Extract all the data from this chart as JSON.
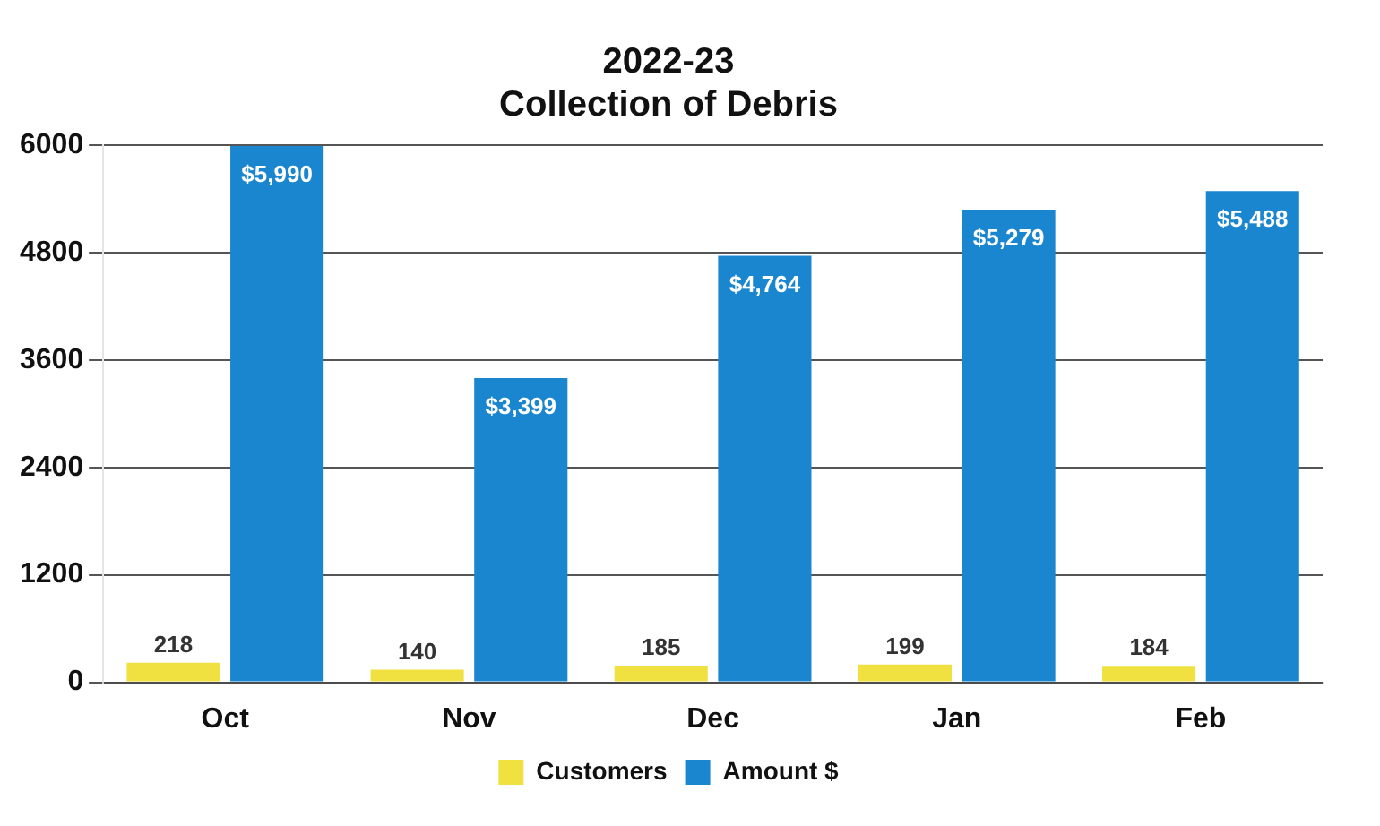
{
  "chart_data": {
    "type": "bar",
    "title": "2022-23\nCollection of Debris",
    "categories": [
      "Oct",
      "Nov",
      "Dec",
      "Jan",
      "Feb"
    ],
    "series": [
      {
        "name": "Customers",
        "color": "#f0e040",
        "values": [
          218,
          140,
          185,
          199,
          184
        ],
        "value_labels": [
          "218",
          "140",
          "185",
          "199",
          "184"
        ]
      },
      {
        "name": "Amount $",
        "color": "#1a86d0",
        "values": [
          5990,
          3399,
          4764,
          5279,
          5488
        ],
        "value_labels": [
          "$5,990",
          "$3,399",
          "$4,764",
          "$5,279",
          "$5,488"
        ]
      }
    ],
    "ylim": [
      0,
      6000
    ],
    "yticks": [
      0,
      1200,
      2400,
      3600,
      4800,
      6000
    ],
    "grid": "y",
    "legend": "bottom"
  }
}
